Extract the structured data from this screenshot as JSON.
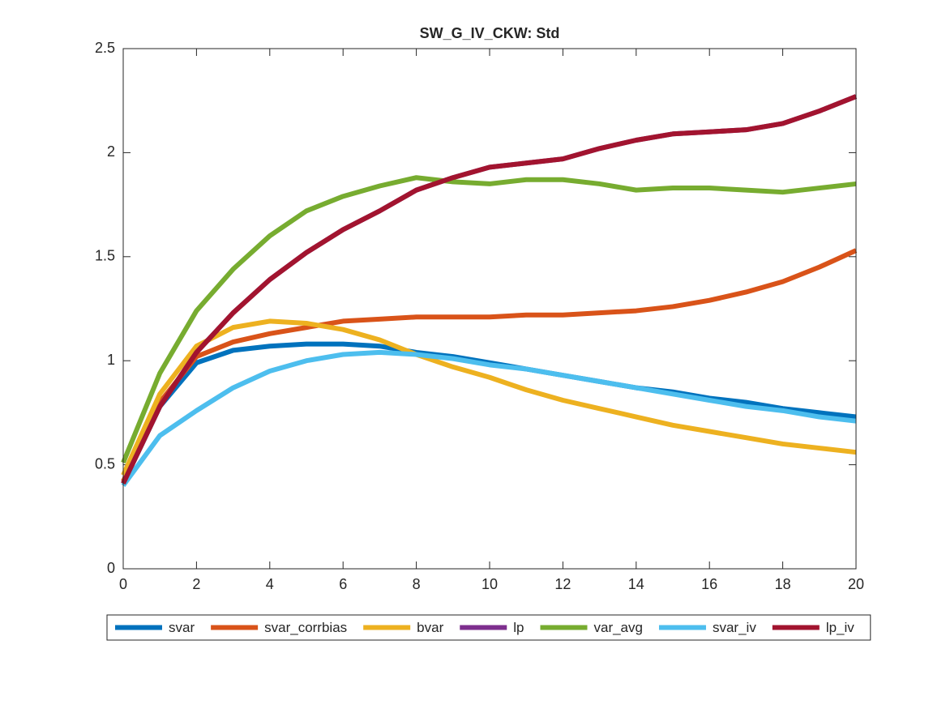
{
  "chart_data": {
    "type": "line",
    "title": "SW_G_IV_CKW: Std",
    "x": [
      0,
      1,
      2,
      3,
      4,
      5,
      6,
      7,
      8,
      9,
      10,
      11,
      12,
      13,
      14,
      15,
      16,
      17,
      18,
      19,
      20
    ],
    "series": [
      {
        "name": "svar",
        "color": "#0072bd",
        "values": [
          0.41,
          0.78,
          0.99,
          1.05,
          1.07,
          1.08,
          1.08,
          1.07,
          1.04,
          1.02,
          0.99,
          0.96,
          0.93,
          0.9,
          0.87,
          0.85,
          0.82,
          0.8,
          0.77,
          0.75,
          0.73
        ]
      },
      {
        "name": "svar_corrbias",
        "color": "#d95319",
        "values": [
          0.42,
          0.8,
          1.02,
          1.09,
          1.13,
          1.16,
          1.19,
          1.2,
          1.21,
          1.21,
          1.21,
          1.22,
          1.22,
          1.23,
          1.24,
          1.26,
          1.29,
          1.33,
          1.38,
          1.45,
          1.53
        ]
      },
      {
        "name": "bvar",
        "color": "#edb120",
        "values": [
          0.45,
          0.84,
          1.07,
          1.16,
          1.19,
          1.18,
          1.15,
          1.1,
          1.03,
          0.97,
          0.92,
          0.86,
          0.81,
          0.77,
          0.73,
          0.69,
          0.66,
          0.63,
          0.6,
          0.58,
          0.56
        ]
      },
      {
        "name": "lp",
        "color": "#7e2f8e",
        "values": [
          0.41,
          0.78,
          1.04,
          1.23,
          1.39,
          1.52,
          1.63,
          1.72,
          1.82,
          1.88,
          1.93,
          1.95,
          1.97,
          2.02,
          2.06,
          2.09,
          2.1,
          2.11,
          2.14,
          2.2,
          2.27
        ]
      },
      {
        "name": "var_avg",
        "color": "#77ac30",
        "values": [
          0.51,
          0.94,
          1.24,
          1.44,
          1.6,
          1.72,
          1.79,
          1.84,
          1.88,
          1.86,
          1.85,
          1.87,
          1.87,
          1.85,
          1.82,
          1.83,
          1.83,
          1.82,
          1.81,
          1.83,
          1.85
        ]
      },
      {
        "name": "svar_iv",
        "color": "#4dbeee",
        "values": [
          0.4,
          0.64,
          0.76,
          0.87,
          0.95,
          1.0,
          1.03,
          1.04,
          1.03,
          1.01,
          0.98,
          0.96,
          0.93,
          0.9,
          0.87,
          0.84,
          0.81,
          0.78,
          0.76,
          0.73,
          0.71
        ]
      },
      {
        "name": "lp_iv",
        "color": "#a2142f",
        "values": [
          0.41,
          0.78,
          1.04,
          1.23,
          1.39,
          1.52,
          1.63,
          1.72,
          1.82,
          1.88,
          1.93,
          1.95,
          1.97,
          2.02,
          2.06,
          2.09,
          2.1,
          2.11,
          2.14,
          2.2,
          2.27
        ]
      }
    ],
    "xlim": [
      0,
      20
    ],
    "xticks": [
      0,
      2,
      4,
      6,
      8,
      10,
      12,
      14,
      16,
      18,
      20
    ],
    "ylim": [
      0,
      2.5
    ],
    "yticks": [
      0,
      0.5,
      1,
      1.5,
      2,
      2.5
    ],
    "legend": "bottom"
  }
}
